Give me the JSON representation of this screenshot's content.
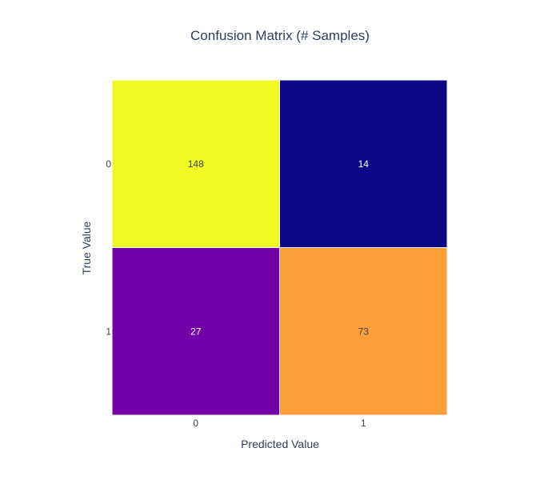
{
  "chart_data": {
    "type": "heatmap",
    "title": "Confusion Matrix (# Samples)",
    "xlabel": "Predicted Value",
    "ylabel": "True Value",
    "x_categories": [
      "0",
      "1"
    ],
    "y_categories": [
      "0",
      "1"
    ],
    "values": [
      [
        148,
        14
      ],
      [
        27,
        73
      ]
    ],
    "cell_colors": [
      [
        "#f0f921",
        "#0d0887"
      ],
      [
        "#7201a8",
        "#fb9f3a"
      ]
    ],
    "text_colors": [
      [
        "#444444",
        "#ffffff"
      ],
      [
        "#ffffff",
        "#444444"
      ]
    ],
    "colorscale": "Plasma",
    "legend": "none"
  }
}
